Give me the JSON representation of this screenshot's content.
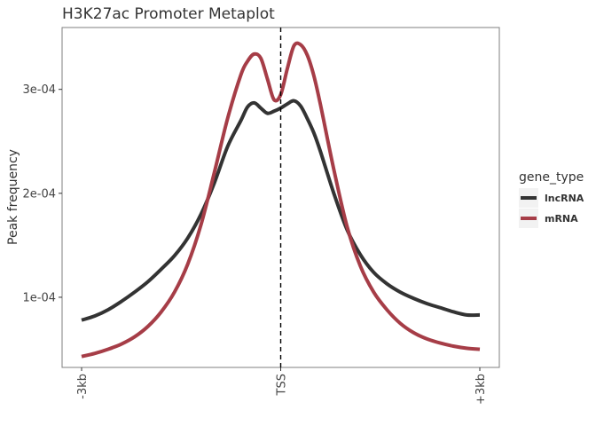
{
  "chart_data": {
    "type": "line",
    "title": "H3K27ac Promoter Metaplot",
    "xlabel": "",
    "ylabel": "Peak frequency",
    "x_tick_labels": [
      "-3kb",
      "TSS",
      "+3kb"
    ],
    "xlim": [
      -3000,
      3000
    ],
    "x_ticks": [
      -3000,
      0,
      3000
    ],
    "ylim": [
      3.25e-05,
      0.0003595
    ],
    "y_ticks": [
      0.0001,
      0.0002,
      0.0003
    ],
    "y_tick_labels": [
      "1e-04",
      "2e-04",
      "3e-04"
    ],
    "vline": {
      "x": 0,
      "style": "dashed"
    },
    "grid": false,
    "legend": {
      "title": "gene_type",
      "position": "right"
    },
    "x": [
      -3000,
      -2800,
      -2600,
      -2400,
      -2200,
      -2000,
      -1800,
      -1600,
      -1400,
      -1200,
      -1000,
      -800,
      -600,
      -500,
      -400,
      -300,
      -200,
      -100,
      0,
      100,
      200,
      300,
      400,
      500,
      600,
      800,
      1000,
      1200,
      1400,
      1600,
      1800,
      2000,
      2200,
      2400,
      2600,
      2800,
      3000
    ],
    "series": [
      {
        "name": "lncRNA",
        "color": "#333333",
        "values": [
          7.8e-05,
          8.2e-05,
          8.8e-05,
          9.6e-05,
          0.000105,
          0.000115,
          0.000127,
          0.00014,
          0.000157,
          0.00018,
          0.00021,
          0.000245,
          0.00027,
          0.000283,
          0.000287,
          0.000282,
          0.000277,
          0.000279,
          0.000282,
          0.000286,
          0.000289,
          0.000284,
          0.000272,
          0.000258,
          0.00024,
          0.0002,
          0.000165,
          0.000141,
          0.000124,
          0.000113,
          0.000105,
          9.9e-05,
          9.4e-05,
          9e-05,
          8.6e-05,
          8.3e-05,
          8.3e-05
        ]
      },
      {
        "name": "mRNA",
        "color": "#A63D47",
        "values": [
          4.3e-05,
          4.6e-05,
          5e-05,
          5.5e-05,
          6.2e-05,
          7.2e-05,
          8.6e-05,
          0.000105,
          0.000132,
          0.00017,
          0.00022,
          0.000272,
          0.000314,
          0.000327,
          0.000334,
          0.00033,
          0.00031,
          0.00029,
          0.000295,
          0.00032,
          0.000342,
          0.000343,
          0.000333,
          0.000313,
          0.000285,
          0.000223,
          0.000168,
          0.00013,
          0.000105,
          8.8e-05,
          7.5e-05,
          6.6e-05,
          6e-05,
          5.6e-05,
          5.3e-05,
          5.1e-05,
          5e-05
        ]
      }
    ]
  }
}
